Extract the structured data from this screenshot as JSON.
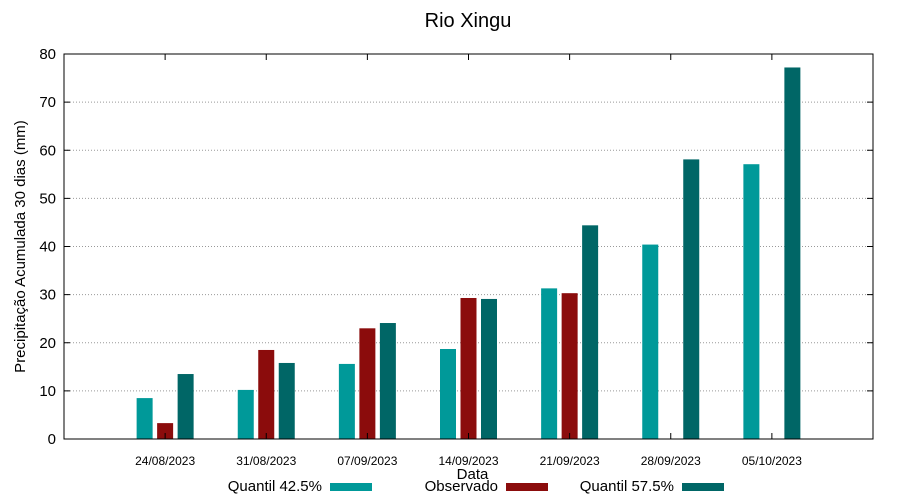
{
  "chart_data": {
    "type": "bar",
    "title": "Rio Xingu",
    "xlabel": "Data",
    "ylabel": "Precipitação Acumulada 30 dias (mm)",
    "ylim": [
      0,
      80
    ],
    "yticks": [
      0,
      10,
      20,
      30,
      40,
      50,
      60,
      70,
      80
    ],
    "categories": [
      "24/08/2023",
      "31/08/2023",
      "07/09/2023",
      "14/09/2023",
      "21/09/2023",
      "28/09/2023",
      "05/10/2023"
    ],
    "grid": true,
    "legend_position": "bottom",
    "series": [
      {
        "name": "Quantil 42.5%",
        "color": "#009999",
        "values": [
          8.5,
          10.2,
          15.6,
          18.7,
          31.3,
          40.4,
          57.1
        ]
      },
      {
        "name": "Observado",
        "color": "#8b0c0c",
        "values": [
          3.3,
          18.5,
          23.0,
          29.3,
          30.3,
          null,
          null
        ]
      },
      {
        "name": "Quantil 57.5%",
        "color": "#006666",
        "values": [
          13.5,
          15.8,
          24.1,
          29.1,
          44.4,
          58.1,
          77.2
        ]
      }
    ]
  }
}
